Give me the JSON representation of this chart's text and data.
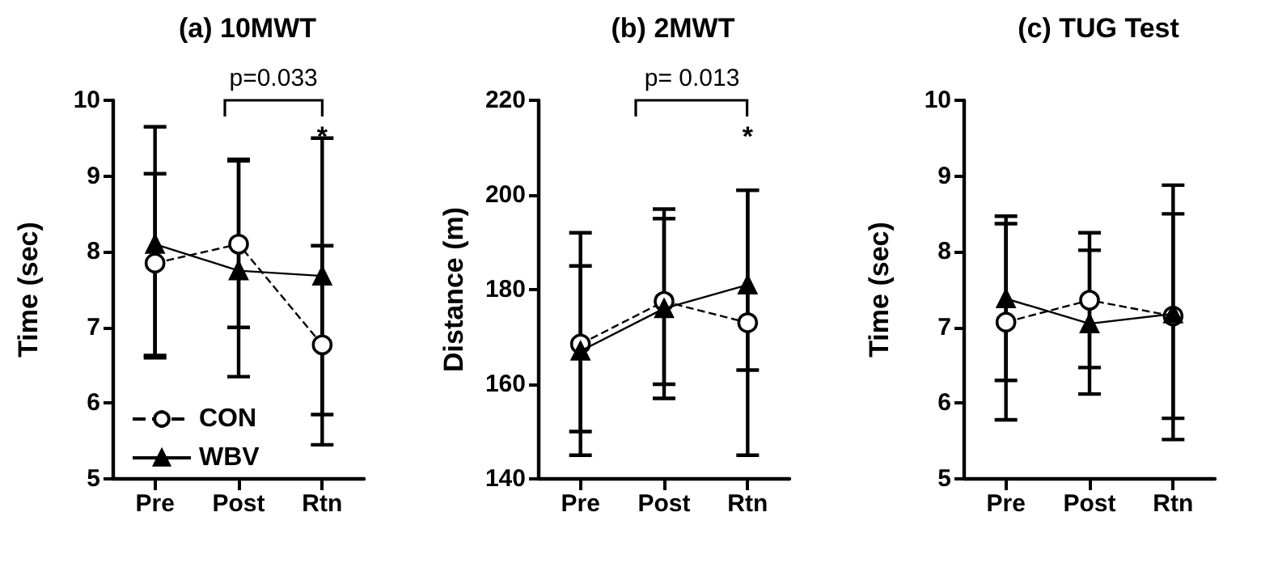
{
  "chart_data": [
    {
      "type": "line",
      "title": "(a) 10MWT",
      "ylabel": "Time (sec)",
      "categories": [
        "Pre",
        "Post",
        "Rtn"
      ],
      "ylim": [
        5,
        10
      ],
      "yticks": [
        5,
        6,
        7,
        8,
        9,
        10
      ],
      "legend": "bottom left",
      "grid": false,
      "series": [
        {
          "name": "CON",
          "color": "#000000",
          "marker": "circle",
          "line_style": "dashed",
          "values": [
            7.85,
            8.1,
            6.77
          ],
          "errors": [
            [
              6.63,
              9.03
            ],
            [
              7.0,
              9.2
            ],
            [
              5.45,
              8.08
            ]
          ]
        },
        {
          "name": "WBV",
          "color": "#000000",
          "marker": "triangle",
          "line_style": "solid",
          "values": [
            8.1,
            7.75,
            7.68
          ],
          "errors": [
            [
              6.6,
              9.65
            ],
            [
              6.35,
              9.22
            ],
            [
              5.85,
              9.5
            ]
          ]
        }
      ],
      "annotations": [
        "p=0.033",
        "*"
      ]
    },
    {
      "type": "line",
      "title": "(b) 2MWT",
      "ylabel": "Distance (m)",
      "categories": [
        "Pre",
        "Post",
        "Rtn"
      ],
      "ylim": [
        140,
        220
      ],
      "yticks": [
        140,
        160,
        180,
        200,
        220
      ],
      "grid": false,
      "series": [
        {
          "color": "#000000",
          "marker": "circle",
          "line_style": "dashed",
          "values": [
            168.5,
            177.5,
            173
          ],
          "errors": [
            [
              145,
              192
            ],
            [
              160,
              195
            ],
            [
              145,
              201
            ]
          ]
        },
        {
          "color": "#000000",
          "marker": "triangle",
          "line_style": "solid",
          "values": [
            167,
            176,
            181
          ],
          "errors": [
            [
              150,
              185
            ],
            [
              157,
              197
            ],
            [
              163,
              201
            ]
          ]
        }
      ],
      "annotations": [
        "p= 0.013",
        "*"
      ]
    },
    {
      "type": "line",
      "title": "(c) TUG Test",
      "ylabel": "Time (sec)",
      "categories": [
        "Pre",
        "Post",
        "Rtn"
      ],
      "ylim": [
        5,
        10
      ],
      "yticks": [
        5,
        6,
        7,
        8,
        9,
        10
      ],
      "grid": false,
      "series": [
        {
          "color": "#000000",
          "marker": "circle",
          "line_style": "dashed",
          "values": [
            7.07,
            7.36,
            7.15
          ],
          "errors": [
            [
              5.78,
              8.37
            ],
            [
              6.47,
              8.25
            ],
            [
              5.8,
              8.5
            ]
          ]
        },
        {
          "color": "#000000",
          "marker": "triangle",
          "line_style": "solid",
          "values": [
            7.38,
            7.05,
            7.18
          ],
          "errors": [
            [
              6.3,
              8.47
            ],
            [
              6.12,
              8.02
            ],
            [
              5.52,
              8.88
            ]
          ]
        }
      ]
    }
  ]
}
